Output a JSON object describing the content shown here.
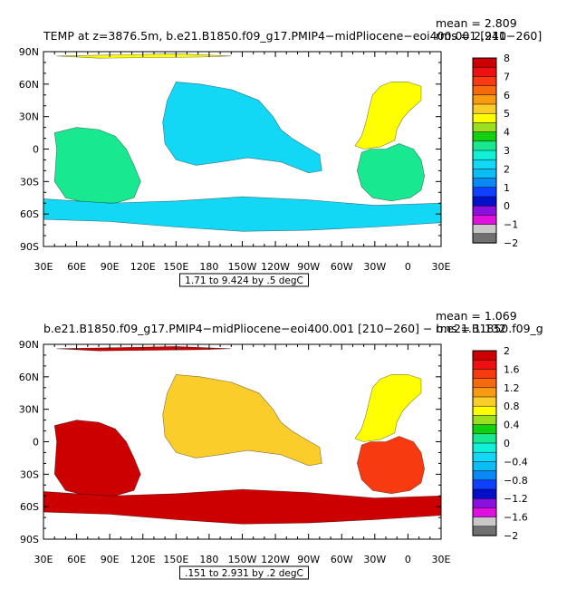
{
  "chart_data": [
    {
      "type": "heatmap",
      "title": "TEMP at z=3876.5m, b.e21.B1850.f09_g17.PMIP4−midPliocene−eoi400.001 [210−260]",
      "stats": {
        "mean": "mean = 2.809",
        "rms": "rms = 2.941"
      },
      "contour_info": "1.71 to 9.424 by .5 degC",
      "x_ticks": [
        "30E",
        "60E",
        "90E",
        "120E",
        "150E",
        "180",
        "150W",
        "120W",
        "90W",
        "60W",
        "30W",
        "0",
        "30E"
      ],
      "y_ticks": [
        "90N",
        "60N",
        "30N",
        "0",
        "30S",
        "60S",
        "90S"
      ],
      "colorbar": {
        "labels": [
          "8",
          "7",
          "6",
          "5",
          "4",
          "3",
          "2",
          "1",
          "0",
          "−1",
          "−2"
        ],
        "colors": [
          "#cc0000",
          "#ee1010",
          "#f83a10",
          "#f76a0b",
          "#f89a12",
          "#fbcd2a",
          "#ffff00",
          "#9be020",
          "#10d010",
          "#18e890",
          "#10f0d8",
          "#12d8f5",
          "#0abdf5",
          "#0a88f5",
          "#1040ff",
          "#0010c8",
          "#8a10e0",
          "#e010e0",
          "#c8c8c8",
          "#707070"
        ]
      },
      "regions": [
        {
          "name": "pacific",
          "value": 2.1
        },
        {
          "name": "atlantic_north",
          "value": 4.6
        },
        {
          "name": "atlantic_south",
          "value": 3.4
        },
        {
          "name": "indian",
          "value": 3.3
        },
        {
          "name": "southern_ocean",
          "value": 2.3
        },
        {
          "name": "arctic",
          "value": 5.0
        }
      ]
    },
    {
      "type": "heatmap",
      "title": "b.e21.B1850.f09_g17.PMIP4−midPliocene−eoi400.001 [210−260] − b.e21.B1850.f09_g",
      "stats": {
        "mean": "mean = 1.069",
        "rms": "rms = 1.132"
      },
      "contour_info": ".151 to 2.931 by .2 degC",
      "x_ticks": [
        "30E",
        "60E",
        "90E",
        "120E",
        "150E",
        "180",
        "150W",
        "120W",
        "90W",
        "60W",
        "30W",
        "0",
        "30E"
      ],
      "y_ticks": [
        "90N",
        "60N",
        "30N",
        "0",
        "30S",
        "60S",
        "90S"
      ],
      "colorbar": {
        "labels": [
          "2",
          "1.6",
          "1.2",
          "0.8",
          "0.4",
          "0",
          "−0.4",
          "−0.8",
          "−1.2",
          "−1.6",
          "−2"
        ],
        "colors": [
          "#cc0000",
          "#ee1010",
          "#f83a10",
          "#f76a0b",
          "#f89a12",
          "#fbcd2a",
          "#ffff00",
          "#9be020",
          "#10d010",
          "#18e890",
          "#10f0d8",
          "#12d8f5",
          "#0abdf5",
          "#0a88f5",
          "#1040ff",
          "#0010c8",
          "#8a10e0",
          "#e010e0",
          "#c8c8c8",
          "#707070"
        ]
      },
      "regions": [
        {
          "name": "pacific",
          "value": 1.0
        },
        {
          "name": "atlantic_north",
          "value": 0.7
        },
        {
          "name": "atlantic_south",
          "value": 1.5
        },
        {
          "name": "indian",
          "value": 1.8
        },
        {
          "name": "southern_ocean",
          "value": 1.8
        },
        {
          "name": "arctic",
          "value": 1.8
        }
      ]
    }
  ]
}
